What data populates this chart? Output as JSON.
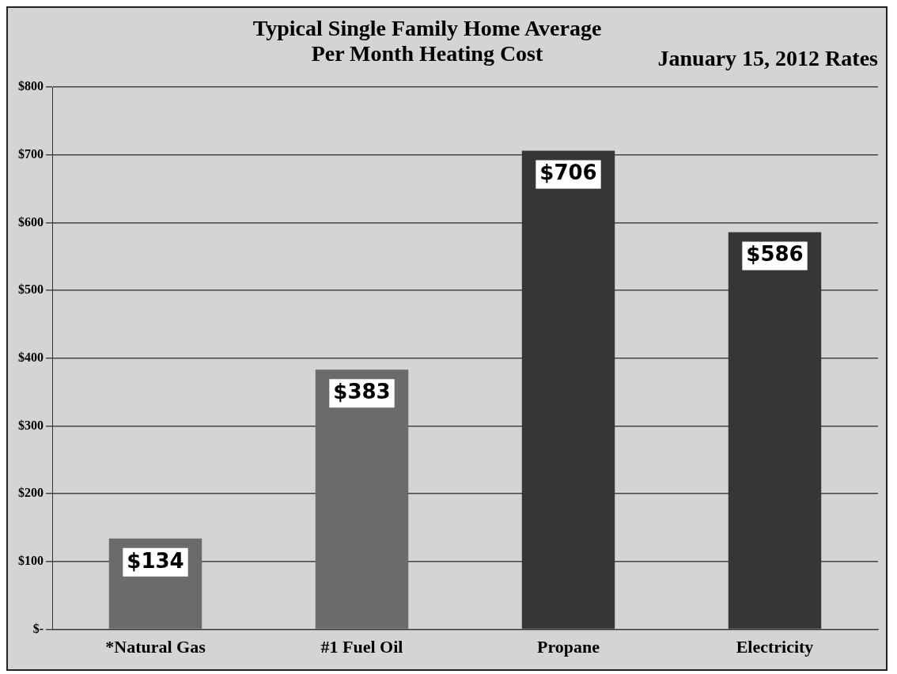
{
  "chart_data": {
    "type": "bar",
    "title": "Typical Single Family Home Average Per Month Heating Cost",
    "subtitle": "January 15, 2012 Rates",
    "categories": [
      "*Natural Gas",
      "#1 Fuel Oil",
      "Propane",
      "Electricity"
    ],
    "values": [
      134,
      383,
      706,
      586
    ],
    "colors": [
      "#6b6b6b",
      "#6b6b6b",
      "#363636",
      "#363636"
    ],
    "value_labels": [
      "$134",
      "$383",
      "$706",
      "$586"
    ],
    "ylim": [
      0,
      800
    ],
    "yticks": [
      {
        "value": 0,
        "label": "$-"
      },
      {
        "value": 100,
        "label": "$100"
      },
      {
        "value": 200,
        "label": "$200"
      },
      {
        "value": 300,
        "label": "$300"
      },
      {
        "value": 400,
        "label": "$400"
      },
      {
        "value": 500,
        "label": "$500"
      },
      {
        "value": 600,
        "label": "$600"
      },
      {
        "value": 700,
        "label": "$700"
      },
      {
        "value": 800,
        "label": "$800"
      }
    ],
    "grid": "y",
    "legend": false
  }
}
